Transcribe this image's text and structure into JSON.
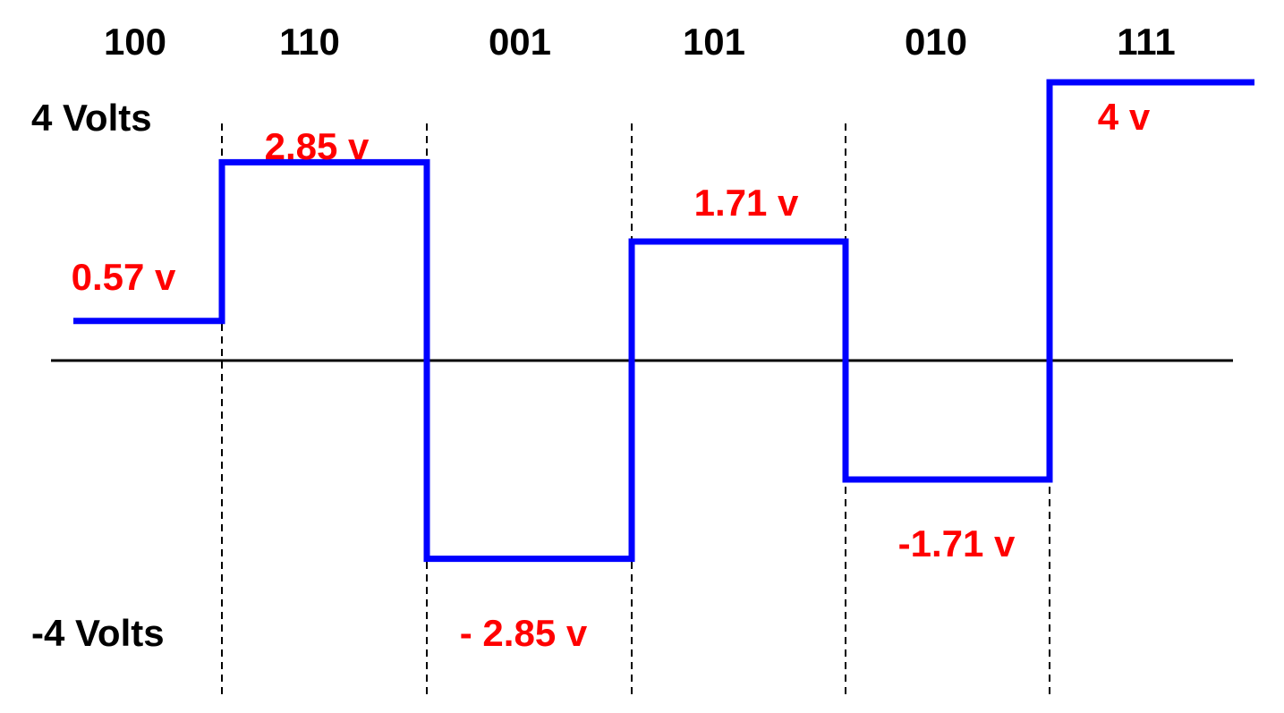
{
  "colors": {
    "signal": "#0000ff",
    "voltage_text": "#ff0000",
    "axis": "#000000",
    "text": "#000000"
  },
  "axis_labels": {
    "max": "4 Volts",
    "min": "-4 Volts"
  },
  "symbols": [
    {
      "code": "100",
      "level": 0.57,
      "label": "0.57 v"
    },
    {
      "code": "110",
      "level": 2.85,
      "label": "2.85 v"
    },
    {
      "code": "001",
      "level": -2.85,
      "label": "- 2.85 v"
    },
    {
      "code": "101",
      "level": 1.71,
      "label": "1.71 v"
    },
    {
      "code": "010",
      "level": -1.71,
      "label": "-1.71 v"
    },
    {
      "code": "111",
      "level": 4,
      "label": "4 v"
    }
  ]
}
